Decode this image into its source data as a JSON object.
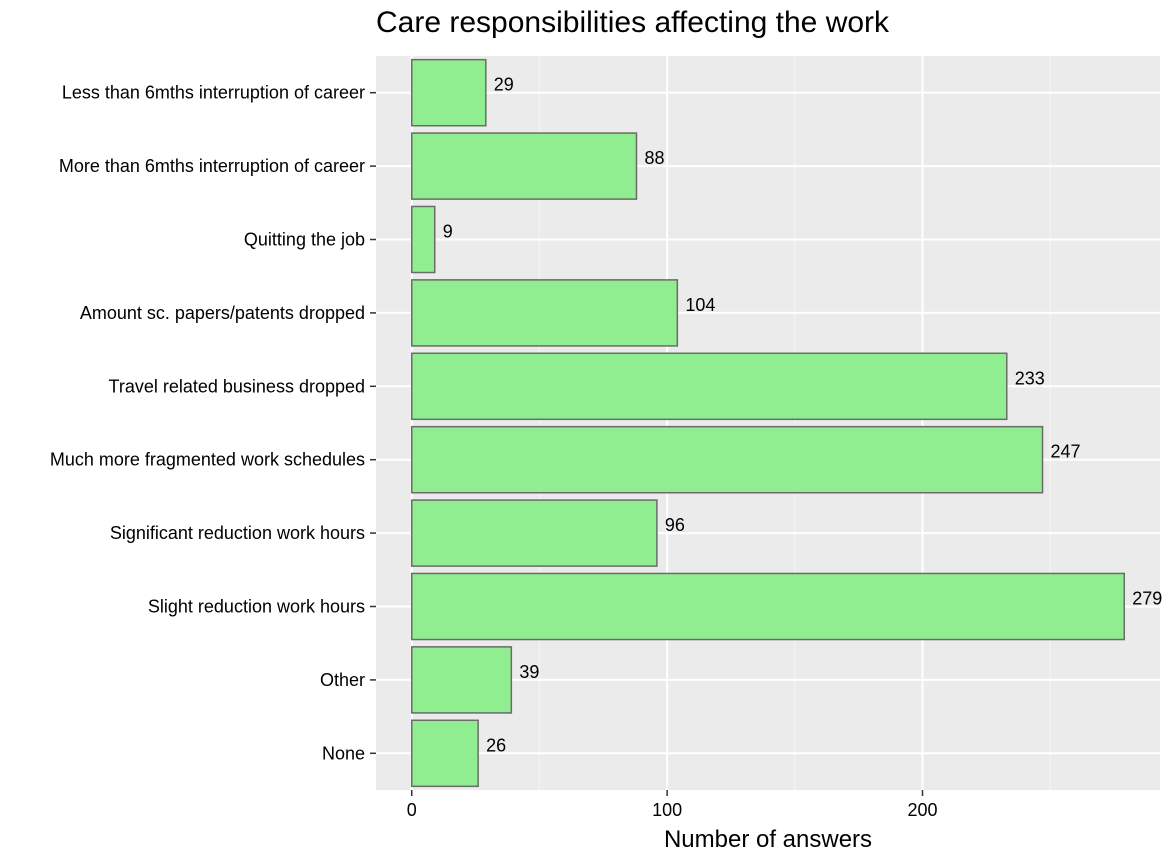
{
  "chart_data": {
    "type": "bar",
    "orientation": "horizontal",
    "title": "Care responsibilities affecting the work",
    "xlabel": "Number of answers",
    "ylabel": "",
    "categories": [
      "Less than 6mths interruption of career",
      "More than 6mths interruption of career",
      "Quitting the job",
      "Amount sc. papers/patents dropped",
      "Travel related business dropped",
      "Much more fragmented work schedules",
      "Significant reduction work hours",
      "Slight reduction work hours",
      "Other",
      "None"
    ],
    "values": [
      29,
      88,
      9,
      104,
      233,
      247,
      96,
      279,
      39,
      26
    ],
    "xlim": [
      -14,
      293
    ],
    "xticks": [
      0,
      100,
      200
    ],
    "grid": true,
    "legend": "none",
    "colors": {
      "bar_fill": "#90ee90",
      "bar_stroke": "#6b6b6b",
      "panel_background": "#ebebeb",
      "grid_major": "#ffffff",
      "grid_minor": "#f5f5f5",
      "tick_color": "#333333",
      "text": "#000000"
    }
  }
}
